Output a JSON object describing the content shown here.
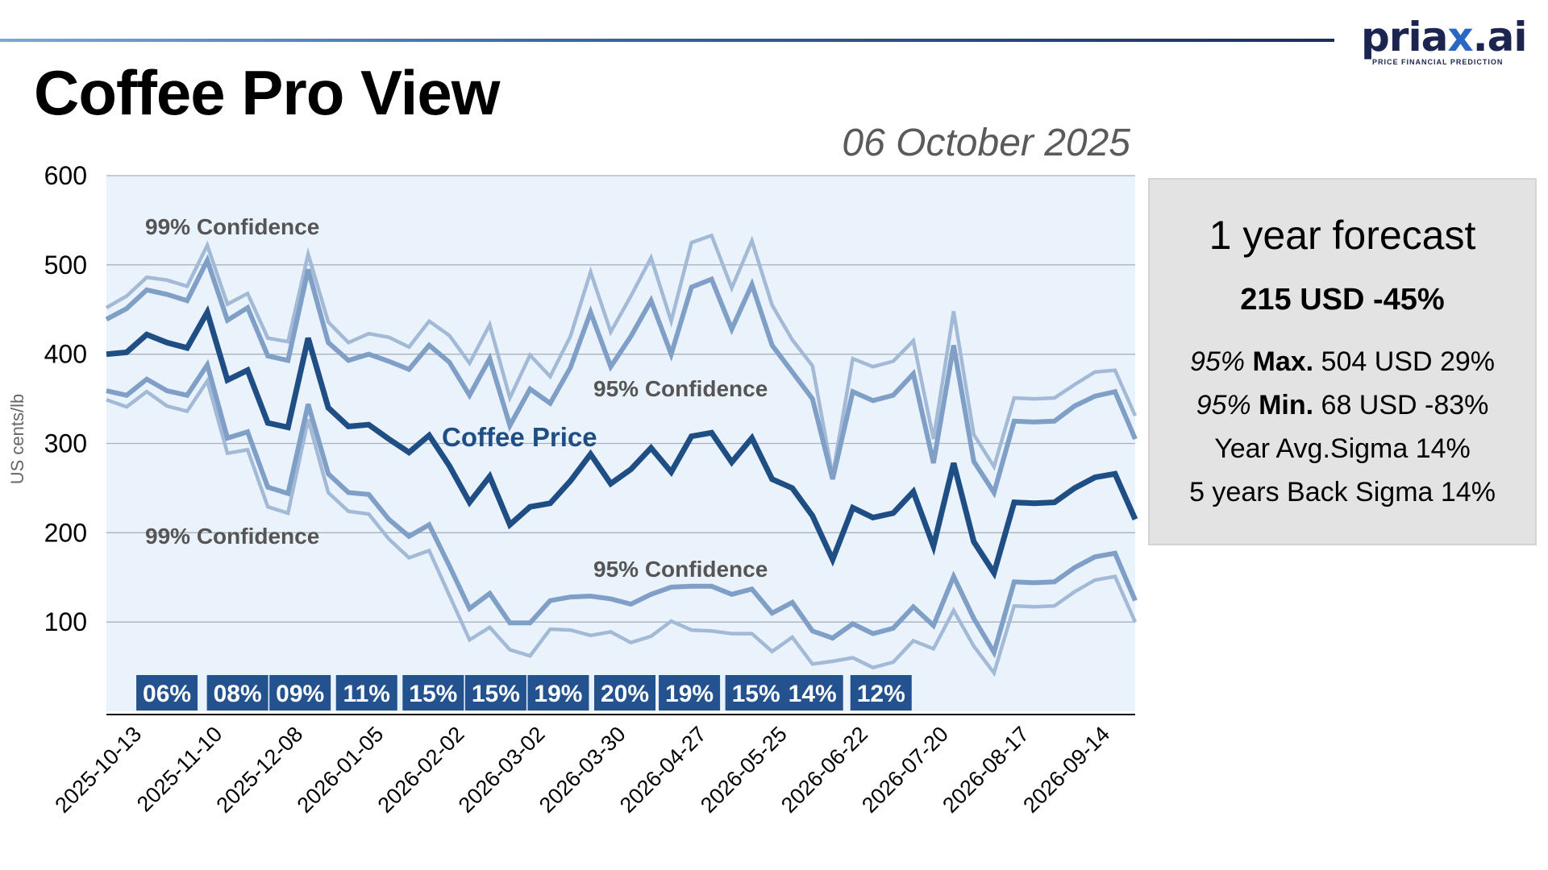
{
  "header": {
    "title": "Coffee Pro View",
    "date": "06 October 2025",
    "logo_text_main": "priax.ai",
    "logo_text_sub": "PRICE FINANCIAL PREDICTION"
  },
  "forecast_panel": {
    "title": "1 year forecast",
    "headline": "215 USD -45%",
    "max_line": {
      "prefix": "95%",
      "label": "Max.",
      "value": "504 USD 29%"
    },
    "min_line": {
      "prefix": "95%",
      "label": "Min.",
      "value": "68 USD -83%"
    },
    "avg_sigma": "Year Avg.Sigma 14%",
    "back_sigma": "5 years Back Sigma 14%"
  },
  "colors": {
    "main": "#1f4e85",
    "band95": "#7f9fc6",
    "band99": "#a3bad6",
    "plot_bg": "#eaf2fc",
    "badge": "#23528f",
    "annotation": "#555555"
  },
  "chart_data": {
    "type": "line",
    "title": "Coffee Pro View",
    "ylabel": "US cents/lb",
    "xlabel": "",
    "ylim": [
      0,
      600
    ],
    "yticks": [
      "100",
      "200",
      "300",
      "400",
      "500",
      "600"
    ],
    "grid": true,
    "x_tick_labels": [
      "2025-10-13",
      "2025-11-10",
      "2025-12-08",
      "2026-01-05",
      "2026-02-02",
      "2026-03-02",
      "2026-03-30",
      "2026-04-27",
      "2026-05-25",
      "2026-06-22",
      "2026-07-20",
      "2026-08-17",
      "2026-09-14"
    ],
    "frequency": "weekly",
    "series": [
      {
        "name": "Coffee Price",
        "role": "main",
        "values": [
          400,
          402,
          422,
          413,
          407,
          447,
          371,
          382,
          323,
          318,
          418,
          340,
          319,
          321,
          305,
          290,
          309,
          275,
          234,
          263,
          209,
          229,
          233,
          258,
          288,
          255,
          271,
          295,
          268,
          308,
          312,
          279,
          306,
          260,
          250,
          219,
          170,
          228,
          217,
          222,
          246,
          185,
          278,
          190,
          155,
          234,
          233,
          234,
          250,
          262,
          266,
          215
        ]
      },
      {
        "name": "99% Confidence upper",
        "role": "band99",
        "values": [
          452,
          465,
          486,
          483,
          476,
          522,
          456,
          468,
          418,
          414,
          512,
          436,
          413,
          423,
          419,
          408,
          437,
          421,
          390,
          433,
          351,
          399,
          375,
          420,
          492,
          425,
          465,
          508,
          437,
          525,
          533,
          474,
          527,
          455,
          416,
          387,
          264,
          395,
          386,
          392,
          415,
          305,
          448,
          310,
          274,
          351,
          350,
          351,
          366,
          380,
          382,
          331
        ]
      },
      {
        "name": "95% Confidence upper",
        "role": "band95",
        "values": [
          439,
          451,
          472,
          467,
          460,
          505,
          438,
          452,
          398,
          393,
          495,
          413,
          393,
          400,
          392,
          383,
          410,
          391,
          354,
          395,
          320,
          361,
          345,
          385,
          447,
          386,
          420,
          460,
          400,
          475,
          484,
          428,
          478,
          410,
          380,
          350,
          260,
          358,
          348,
          354,
          378,
          278,
          410,
          280,
          245,
          325,
          324,
          325,
          342,
          353,
          358,
          305
        ]
      },
      {
        "name": "95% Confidence lower",
        "role": "band95",
        "values": [
          359,
          354,
          372,
          359,
          354,
          388,
          306,
          313,
          251,
          244,
          344,
          266,
          245,
          243,
          215,
          196,
          209,
          163,
          115,
          132,
          99,
          99,
          124,
          128,
          129,
          126,
          120,
          131,
          139,
          140,
          140,
          131,
          137,
          110,
          122,
          90,
          82,
          98,
          87,
          93,
          117,
          96,
          151,
          104,
          66,
          145,
          144,
          145,
          161,
          173,
          177,
          124
        ]
      },
      {
        "name": "99% Confidence lower",
        "role": "band99",
        "values": [
          349,
          341,
          358,
          342,
          336,
          370,
          289,
          293,
          229,
          222,
          327,
          245,
          224,
          221,
          193,
          172,
          180,
          130,
          80,
          94,
          69,
          62,
          92,
          91,
          85,
          89,
          77,
          84,
          101,
          91,
          90,
          87,
          87,
          67,
          83,
          53,
          56,
          60,
          49,
          55,
          79,
          70,
          113,
          73,
          43,
          118,
          117,
          118,
          134,
          147,
          151,
          100
        ]
      }
    ],
    "annotations": [
      {
        "text": "99% Confidence",
        "series": "upper 99",
        "at_week": 2
      },
      {
        "text": "95% Confidence",
        "series": "upper 95",
        "at_week": 24
      },
      {
        "text": "Coffee Price",
        "series": "main",
        "at_week": 17
      },
      {
        "text": "99% Confidence",
        "series": "lower 99",
        "at_week": 2
      },
      {
        "text": "95% Confidence",
        "series": "lower 95",
        "at_week": 24
      }
    ],
    "sigma_badges": [
      {
        "text": "06%",
        "at_week": 3
      },
      {
        "text": "08%",
        "at_week": 6.5
      },
      {
        "text": "09%",
        "at_week": 9.6
      },
      {
        "text": "11%",
        "at_week": 12.9
      },
      {
        "text": "15%",
        "at_week": 16.2
      },
      {
        "text": "15%",
        "at_week": 19.3
      },
      {
        "text": "19%",
        "at_week": 22.4
      },
      {
        "text": "20%",
        "at_week": 25.7
      },
      {
        "text": "19%",
        "at_week": 28.9
      },
      {
        "text": "15%",
        "at_week": 32.2
      },
      {
        "text": "14%",
        "at_week": 35.0
      },
      {
        "text": "12%",
        "at_week": 38.4
      }
    ]
  }
}
